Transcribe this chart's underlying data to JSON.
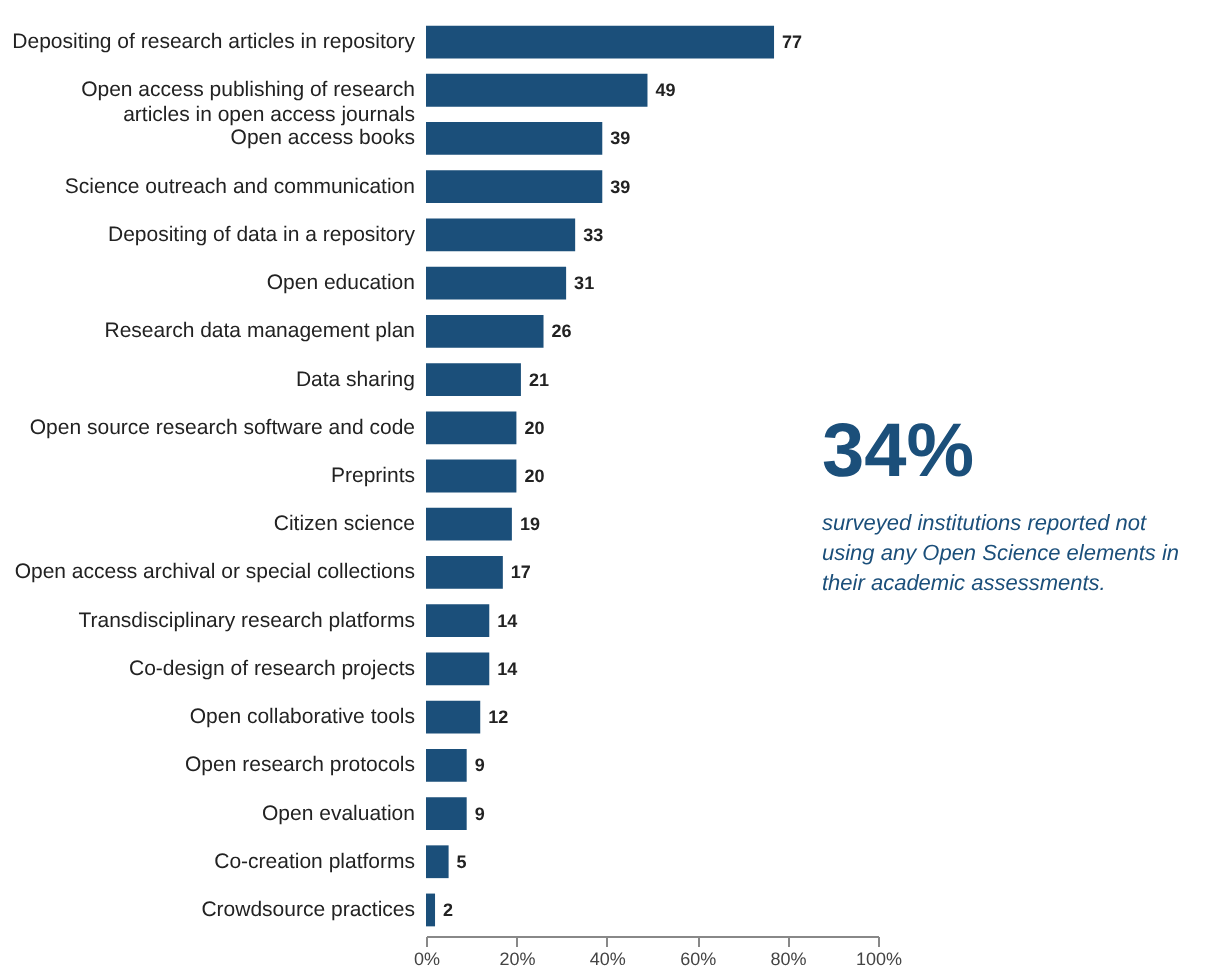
{
  "chart_data": {
    "type": "bar",
    "orientation": "horizontal",
    "data_labels": true,
    "grid": false,
    "categories": [
      "Depositing of research articles in repository",
      "Open access publishing of research articles in open access journals",
      "Open access books",
      "Science outreach and communication",
      "Depositing of data in a repository",
      "Open education",
      "Research data management plan",
      "Data sharing",
      "Open source research software and code",
      "Preprints",
      "Citizen science",
      "Open access archival or special collections",
      "Transdisciplinary research platforms",
      "Co-design of research projects",
      "Open collaborative tools",
      "Open research protocols",
      "Open evaluation",
      "Co-creation platforms",
      "Crowdsource practices"
    ],
    "values": [
      77,
      49,
      39,
      39,
      33,
      31,
      26,
      21,
      20,
      20,
      19,
      17,
      14,
      14,
      12,
      9,
      9,
      5,
      2
    ],
    "color": "#1b4f7a",
    "xlim": [
      0,
      100
    ],
    "xticks": [
      {
        "value": 0,
        "label": "0%"
      },
      {
        "value": 20,
        "label": "20%"
      },
      {
        "value": 40,
        "label": "40%"
      },
      {
        "value": 60,
        "label": "60%"
      },
      {
        "value": 80,
        "label": "80%"
      },
      {
        "value": 100,
        "label": "100%"
      }
    ],
    "annotations": [
      "34%",
      "surveyed institutions reported not using any Open Science elements in their academic assessments."
    ]
  }
}
